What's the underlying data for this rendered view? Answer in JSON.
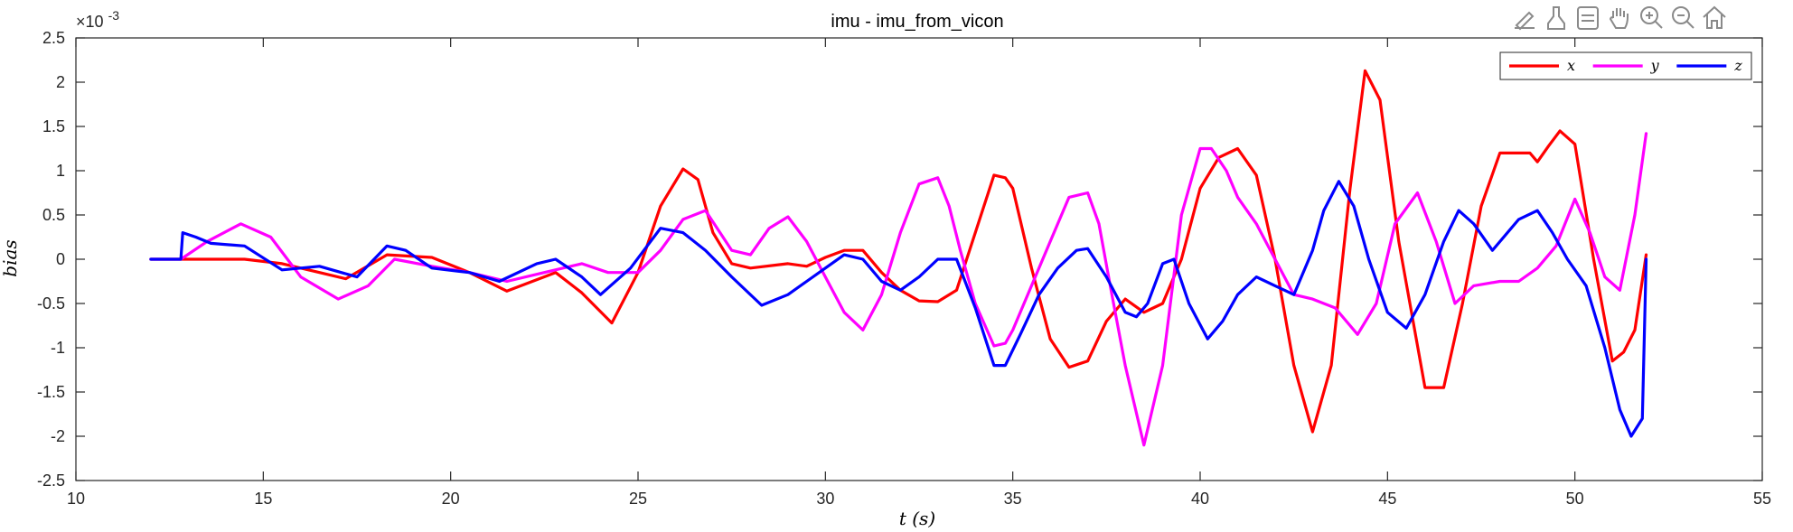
{
  "toolbar": {
    "icons": [
      "edit-pen-icon",
      "brush-icon",
      "data-tips-icon",
      "pan-hand-icon",
      "zoom-in-icon",
      "zoom-out-icon",
      "home-icon"
    ]
  },
  "chart_data": {
    "type": "line",
    "title": "imu - imu_from_vicon",
    "xlabel": "t (s)",
    "ylabel": "bias",
    "y_exponent_label": "×10",
    "y_exponent_power": "-3",
    "xlim": [
      10,
      55
    ],
    "ylim": [
      -2.5,
      2.5
    ],
    "xticks": [
      10,
      15,
      20,
      25,
      30,
      35,
      40,
      45,
      50,
      55
    ],
    "yticks": [
      -2.5,
      -2,
      -1.5,
      -1,
      -0.5,
      0,
      0.5,
      1,
      1.5,
      2,
      2.5
    ],
    "ytick_labels": [
      "-2.5",
      "-2",
      "-1.5",
      "-1",
      "-0.5",
      "0",
      "0.5",
      "1",
      "1.5",
      "2",
      "2.5"
    ],
    "xtick_labels": [
      "10",
      "15",
      "20",
      "25",
      "30",
      "35",
      "40",
      "45",
      "50",
      "55"
    ],
    "grid": false,
    "legend_position": "top-right",
    "series": [
      {
        "name": "x",
        "color": "#ff0000",
        "x": [
          12.0,
          12.8,
          13.5,
          14.5,
          15.5,
          16.5,
          17.2,
          18.3,
          19.5,
          20.5,
          21.5,
          22.8,
          23.5,
          24.3,
          25.0,
          25.6,
          26.2,
          26.6,
          27.0,
          27.5,
          28.0,
          29.0,
          29.5,
          30.0,
          30.5,
          31.0,
          31.5,
          32.0,
          32.5,
          33.0,
          33.5,
          34.0,
          34.5,
          34.8,
          35.0,
          35.5,
          36.0,
          36.5,
          37.0,
          37.5,
          38.0,
          38.5,
          39.0,
          39.5,
          40.0,
          40.5,
          41.0,
          41.5,
          42.0,
          42.5,
          43.0,
          43.5,
          44.0,
          44.4,
          44.8,
          45.3,
          46.0,
          46.5,
          47.0,
          47.5,
          48.0,
          48.8,
          49.0,
          49.3,
          49.6,
          50.0,
          50.5,
          51.0,
          51.3,
          51.6,
          51.9
        ],
        "y": [
          0.0,
          0.0,
          0.0,
          0.0,
          -0.05,
          -0.15,
          -0.22,
          0.05,
          0.02,
          -0.15,
          -0.36,
          -0.15,
          -0.38,
          -0.72,
          -0.15,
          0.6,
          1.02,
          0.9,
          0.3,
          -0.05,
          -0.1,
          -0.05,
          -0.08,
          0.02,
          0.1,
          0.1,
          -0.15,
          -0.35,
          -0.47,
          -0.48,
          -0.35,
          0.3,
          0.95,
          0.92,
          0.8,
          -0.1,
          -0.9,
          -1.22,
          -1.15,
          -0.7,
          -0.45,
          -0.6,
          -0.5,
          0.0,
          0.8,
          1.15,
          1.25,
          0.95,
          0.0,
          -1.2,
          -1.95,
          -1.2,
          0.8,
          2.13,
          1.8,
          0.2,
          -1.45,
          -1.45,
          -0.5,
          0.6,
          1.2,
          1.2,
          1.1,
          1.28,
          1.45,
          1.3,
          0.0,
          -1.15,
          -1.05,
          -0.8,
          0.05
        ]
      },
      {
        "name": "y",
        "color": "#ff00ff",
        "x": [
          12.0,
          12.8,
          13.5,
          14.4,
          15.2,
          16.0,
          17.0,
          17.8,
          18.5,
          19.5,
          20.5,
          21.5,
          22.5,
          23.5,
          24.2,
          25.0,
          25.6,
          26.2,
          26.8,
          27.5,
          28.0,
          28.5,
          29.0,
          29.5,
          30.0,
          30.5,
          31.0,
          31.5,
          32.0,
          32.5,
          33.0,
          33.3,
          33.6,
          34.0,
          34.5,
          34.8,
          35.0,
          35.5,
          36.0,
          36.5,
          37.0,
          37.3,
          37.6,
          38.0,
          38.5,
          39.0,
          39.5,
          40.0,
          40.3,
          40.7,
          41.0,
          41.5,
          42.0,
          42.5,
          43.0,
          43.6,
          44.2,
          44.7,
          45.2,
          45.8,
          46.3,
          46.8,
          47.3,
          48.0,
          48.5,
          49.0,
          49.5,
          50.0,
          50.4,
          50.8,
          51.2,
          51.6,
          51.9
        ],
        "y": [
          0.0,
          0.0,
          0.2,
          0.4,
          0.25,
          -0.2,
          -0.45,
          -0.3,
          0.0,
          -0.08,
          -0.15,
          -0.25,
          -0.15,
          -0.05,
          -0.15,
          -0.15,
          0.1,
          0.45,
          0.55,
          0.1,
          0.05,
          0.35,
          0.48,
          0.2,
          -0.2,
          -0.6,
          -0.8,
          -0.4,
          0.3,
          0.85,
          0.92,
          0.6,
          0.1,
          -0.5,
          -0.98,
          -0.95,
          -0.8,
          -0.3,
          0.2,
          0.7,
          0.75,
          0.4,
          -0.3,
          -1.2,
          -2.1,
          -1.2,
          0.5,
          1.25,
          1.25,
          1.0,
          0.7,
          0.4,
          0.0,
          -0.4,
          -0.45,
          -0.55,
          -0.85,
          -0.5,
          0.4,
          0.75,
          0.2,
          -0.5,
          -0.3,
          -0.25,
          -0.25,
          -0.1,
          0.15,
          0.68,
          0.3,
          -0.2,
          -0.35,
          0.5,
          1.42
        ]
      },
      {
        "name": "z",
        "color": "#0000ff",
        "x": [
          12.0,
          12.8,
          12.85,
          13.2,
          13.6,
          14.5,
          15.5,
          16.5,
          17.5,
          18.3,
          18.8,
          19.5,
          20.5,
          21.3,
          22.3,
          22.8,
          23.5,
          24.0,
          24.8,
          25.6,
          26.2,
          26.8,
          27.5,
          28.3,
          29.0,
          29.5,
          30.0,
          30.5,
          31.0,
          31.5,
          32.0,
          32.5,
          33.0,
          33.5,
          34.0,
          34.5,
          34.8,
          35.2,
          35.7,
          36.2,
          36.7,
          37.0,
          37.5,
          38.0,
          38.3,
          38.6,
          39.0,
          39.3,
          39.7,
          40.2,
          40.6,
          41.0,
          41.5,
          42.0,
          42.5,
          43.0,
          43.3,
          43.7,
          44.1,
          44.5,
          45.0,
          45.5,
          46.0,
          46.5,
          46.9,
          47.3,
          47.8,
          48.5,
          49.0,
          49.4,
          49.8,
          50.3,
          50.8,
          51.2,
          51.5,
          51.8,
          51.9
        ],
        "y": [
          0.0,
          0.0,
          0.3,
          0.25,
          0.18,
          0.15,
          -0.12,
          -0.08,
          -0.2,
          0.15,
          0.1,
          -0.1,
          -0.15,
          -0.25,
          -0.05,
          0.0,
          -0.2,
          -0.4,
          -0.1,
          0.35,
          0.3,
          0.1,
          -0.2,
          -0.52,
          -0.4,
          -0.25,
          -0.1,
          0.05,
          0.0,
          -0.25,
          -0.35,
          -0.2,
          0.0,
          0.0,
          -0.55,
          -1.2,
          -1.2,
          -0.85,
          -0.4,
          -0.1,
          0.1,
          0.12,
          -0.2,
          -0.6,
          -0.65,
          -0.5,
          -0.05,
          0.0,
          -0.5,
          -0.9,
          -0.7,
          -0.4,
          -0.2,
          -0.3,
          -0.4,
          0.1,
          0.55,
          0.88,
          0.6,
          0.0,
          -0.6,
          -0.78,
          -0.4,
          0.2,
          0.55,
          0.4,
          0.1,
          0.45,
          0.55,
          0.3,
          0.0,
          -0.3,
          -1.0,
          -1.7,
          -2.0,
          -1.8,
          0.0
        ]
      }
    ]
  }
}
